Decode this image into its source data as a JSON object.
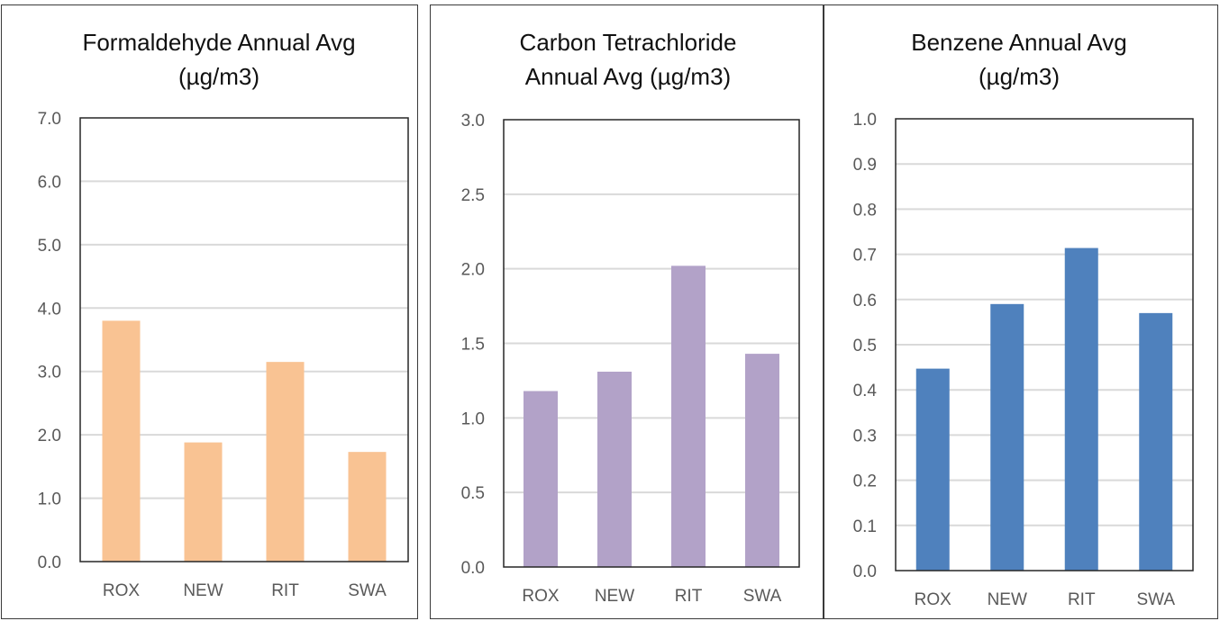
{
  "chart_data": [
    {
      "type": "bar",
      "title_lines": [
        "Formaldehyde Annual Avg",
        "(µg/m3)"
      ],
      "categories": [
        "ROX",
        "NEW",
        "RIT",
        "SWA"
      ],
      "values": [
        3.8,
        1.88,
        3.15,
        1.73
      ],
      "ylim": [
        0,
        7
      ],
      "yticks": [
        "0.0",
        "1.0",
        "2.0",
        "3.0",
        "4.0",
        "5.0",
        "6.0",
        "7.0"
      ],
      "grid": true,
      "legend": "none",
      "color": "#F9C393"
    },
    {
      "type": "bar",
      "title_lines": [
        "Carbon Tetrachloride",
        "Annual Avg (µg/m3)"
      ],
      "categories": [
        "ROX",
        "NEW",
        "RIT",
        "SWA"
      ],
      "values": [
        1.18,
        1.31,
        2.02,
        1.43
      ],
      "ylim": [
        0,
        3
      ],
      "yticks": [
        "0.0",
        "0.5",
        "1.0",
        "1.5",
        "2.0",
        "2.5",
        "3.0"
      ],
      "grid": true,
      "legend": "none",
      "color": "#B2A2C8"
    },
    {
      "type": "bar",
      "title_lines": [
        "Benzene Annual Avg",
        "(µg/m3)"
      ],
      "categories": [
        "ROX",
        "NEW",
        "RIT",
        "SWA"
      ],
      "values": [
        0.447,
        0.59,
        0.714,
        0.57
      ],
      "ylim": [
        0,
        1
      ],
      "yticks": [
        "0.0",
        "0.1",
        "0.2",
        "0.3",
        "0.4",
        "0.5",
        "0.6",
        "0.7",
        "0.8",
        "0.9",
        "1.0"
      ],
      "grid": true,
      "legend": "none",
      "color": "#4F81BD"
    }
  ]
}
